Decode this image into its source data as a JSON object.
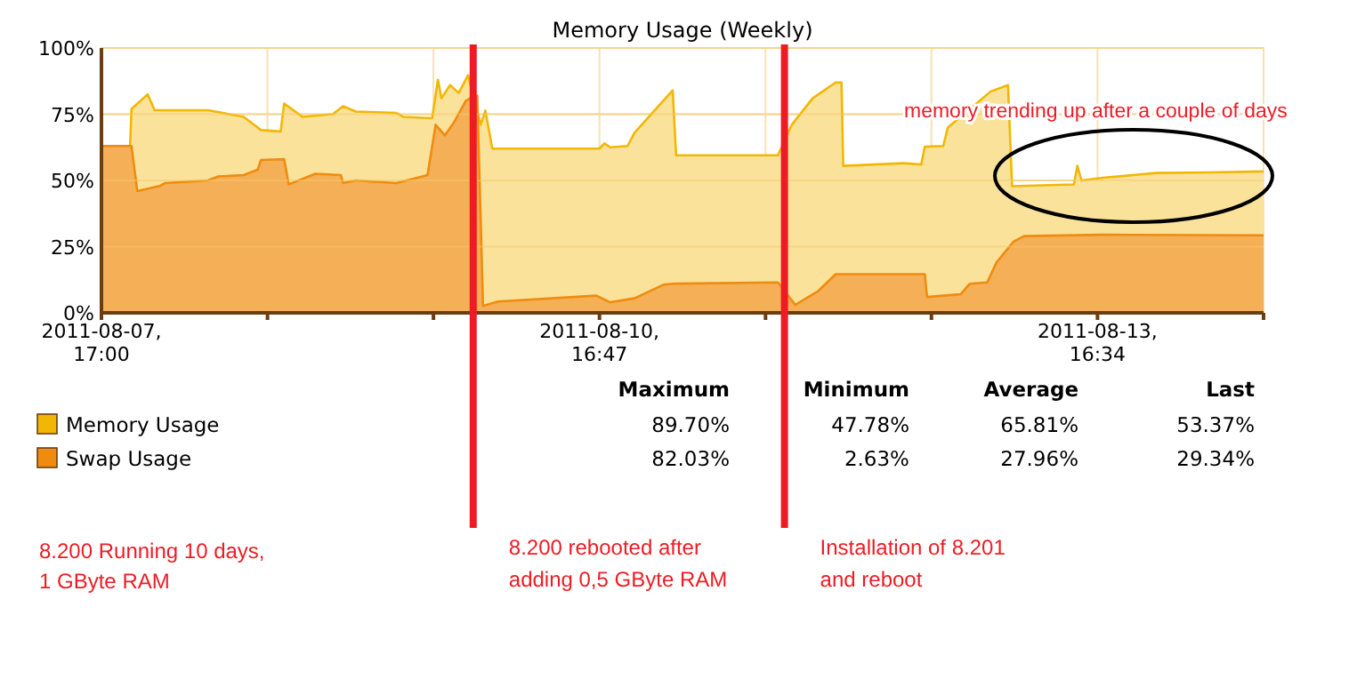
{
  "chart_data": {
    "type": "area",
    "title": "Memory Usage (Weekly)",
    "xlim": [
      "2011-08-07T17:00",
      "2011-08-14T16:30"
    ],
    "xticks": [
      {
        "value": "2011-08-07T17:00",
        "label": "2011-08-07,\n17:00"
      },
      {
        "value": "2011-08-08T16:56",
        "label": null
      },
      {
        "value": "2011-08-09T16:51",
        "label": null
      },
      {
        "value": "2011-08-10T16:47",
        "label": "2011-08-10,\n16:47"
      },
      {
        "value": "2011-08-11T16:43",
        "label": null
      },
      {
        "value": "2011-08-12T16:38",
        "label": null
      },
      {
        "value": "2011-08-13T16:34",
        "label": "2011-08-13,\n16:34"
      },
      {
        "value": "2011-08-14T16:30",
        "label": null
      }
    ],
    "ylim": [
      0,
      100
    ],
    "yticks": [
      {
        "value": 0,
        "label": "0%"
      },
      {
        "value": 25,
        "label": "25%"
      },
      {
        "value": 50,
        "label": "50%"
      },
      {
        "value": 75,
        "label": "75%"
      },
      {
        "value": 100,
        "label": "100%"
      }
    ],
    "grid": true,
    "legend": "bottom left",
    "series": [
      {
        "name": "Memory Usage",
        "color": "#f2b705",
        "x": [
          "2011-08-07T17:00",
          "2011-08-07T21:06",
          "2011-08-07T21:20",
          "2011-08-07T23:40",
          "2011-08-08T00:40",
          "2011-08-08T08:20",
          "2011-08-08T13:30",
          "2011-08-08T16:00",
          "2011-08-08T18:50",
          "2011-08-08T19:20",
          "2011-08-08T22:00",
          "2011-08-09T02:20",
          "2011-08-09T03:50",
          "2011-08-09T05:40",
          "2011-08-09T11:30",
          "2011-08-09T12:30",
          "2011-08-09T16:40",
          "2011-08-09T17:30",
          "2011-08-09T18:00",
          "2011-08-09T19:15",
          "2011-08-09T20:30",
          "2011-08-09T21:50",
          "2011-08-09T23:40",
          "2011-08-10T00:20",
          "2011-08-10T01:20",
          "2011-08-10T16:47",
          "2011-08-10T17:30",
          "2011-08-10T18:20",
          "2011-08-10T20:50",
          "2011-08-10T21:50",
          "2011-08-11T03:20",
          "2011-08-11T03:50",
          "2011-08-11T18:30",
          "2011-08-11T20:30",
          "2011-08-11T23:30",
          "2011-08-12T02:50",
          "2011-08-12T03:40",
          "2011-08-12T03:55",
          "2011-08-12T12:40",
          "2011-08-12T15:10",
          "2011-08-12T15:40",
          "2011-08-12T18:20",
          "2011-08-12T19:00",
          "2011-08-13T01:10",
          "2011-08-13T03:40",
          "2011-08-13T04:15",
          "2011-08-13T13:10",
          "2011-08-13T13:40",
          "2011-08-13T14:15",
          "2011-08-13T17:20",
          "2011-08-14T01:00",
          "2011-08-14T08:40",
          "2011-08-14T16:30"
        ],
        "values": [
          62,
          61,
          77,
          82.5,
          76.5,
          76.5,
          74,
          69,
          68.5,
          79,
          74,
          75,
          78,
          76,
          75.5,
          74,
          73.5,
          88,
          81,
          86,
          83,
          89.7,
          71,
          76.4,
          62,
          62,
          64,
          62.5,
          63,
          68,
          84,
          59.5,
          59.5,
          71,
          81,
          87,
          87,
          55.5,
          56.5,
          56,
          62.7,
          63,
          70,
          83.6,
          86,
          47.8,
          48.5,
          55.5,
          50,
          51,
          52.8,
          53,
          53.4
        ]
      },
      {
        "name": "Swap Usage",
        "color": "#ef8c0f",
        "x": [
          "2011-08-07T17:00",
          "2011-08-07T21:20",
          "2011-08-07T22:10",
          "2011-08-08T01:30",
          "2011-08-08T02:10",
          "2011-08-08T08:20",
          "2011-08-08T09:50",
          "2011-08-08T13:30",
          "2011-08-08T15:30",
          "2011-08-08T16:00",
          "2011-08-08T19:20",
          "2011-08-08T20:00",
          "2011-08-08T23:50",
          "2011-08-09T03:30",
          "2011-08-09T03:50",
          "2011-08-09T05:40",
          "2011-08-09T11:30",
          "2011-08-09T16:00",
          "2011-08-09T17:10",
          "2011-08-09T18:30",
          "2011-08-09T19:50",
          "2011-08-09T21:30",
          "2011-08-09T22:50",
          "2011-08-09T23:10",
          "2011-08-10T00:00",
          "2011-08-10T02:10",
          "2011-08-10T16:20",
          "2011-08-10T18:20",
          "2011-08-10T21:50",
          "2011-08-11T02:00",
          "2011-08-11T03:20",
          "2011-08-11T18:30",
          "2011-08-11T21:00",
          "2011-08-12T00:20",
          "2011-08-12T02:50",
          "2011-08-12T15:40",
          "2011-08-12T16:00",
          "2011-08-12T20:50",
          "2011-08-12T22:10",
          "2011-08-13T00:40",
          "2011-08-13T02:00",
          "2011-08-13T04:30",
          "2011-08-13T06:00",
          "2011-08-13T17:20",
          "2011-08-14T16:30"
        ],
        "values": [
          63,
          63,
          46,
          48,
          49,
          50,
          51.5,
          52,
          54,
          57.7,
          58,
          48.5,
          52.5,
          52,
          49,
          50,
          49,
          52,
          71,
          67,
          72,
          80,
          82,
          82,
          2.6,
          4.3,
          6.5,
          4,
          5.5,
          10.6,
          11,
          11.5,
          3,
          8.3,
          14.6,
          14.6,
          6,
          7,
          11,
          11.5,
          19,
          27,
          29,
          29.5,
          29.3
        ]
      }
    ],
    "ref_lines": [
      {
        "axis": "x",
        "value": "2011-08-09T22:35",
        "label": "8.200 rebooted after\nadding 0,5 GByte RAM",
        "color": "#ed1c24"
      },
      {
        "axis": "x",
        "value": "2011-08-11T19:27",
        "label": "Installation of 8.201\nand reboot",
        "color": "#ed1c24"
      }
    ],
    "annotations": [
      "Maximum",
      "Minimum",
      "Average",
      "Last",
      "89.70%",
      "47.78%",
      "65.81%",
      "53.37%",
      "82.03%",
      "2.63%",
      "27.96%",
      "29.34%",
      "8.200 Running 10 days,\n1 GByte RAM",
      "memory trending up after a couple of days"
    ]
  }
}
